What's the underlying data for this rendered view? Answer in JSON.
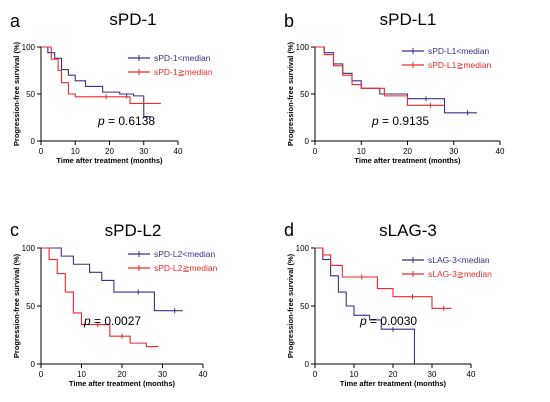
{
  "colors": {
    "series1": "#3a2f8c",
    "series2": "#ee2a2a",
    "axis": "#000000"
  },
  "chart_data": [
    {
      "type": "line",
      "panel_letter": "a",
      "title": "sPD-1",
      "xlabel": "Time after treatment (months)",
      "ylabel": "Progression-free survival (%)",
      "xlim": [
        0,
        40
      ],
      "ylim": [
        0,
        100
      ],
      "xticks": [
        0,
        10,
        20,
        30,
        40
      ],
      "yticks": [
        0,
        50,
        100
      ],
      "grid": false,
      "legend": "top-right",
      "annotation": {
        "prefix": "p",
        "value": " = 0.6138"
      },
      "series": [
        {
          "name": "sPD-1<median",
          "color": "#3a2f8c",
          "x": [
            0,
            2,
            4,
            6,
            8,
            10,
            13,
            18,
            23,
            27,
            30,
            32
          ],
          "y": [
            100,
            94,
            88,
            76,
            70,
            64,
            58,
            52,
            50,
            48,
            26,
            26
          ],
          "censored": [
            [
              25,
              48
            ]
          ]
        },
        {
          "name": "sPD-1≧median",
          "color": "#ee2a2a",
          "x": [
            0,
            3,
            5,
            6,
            8,
            10,
            26,
            35
          ],
          "y": [
            100,
            87,
            75,
            62,
            50,
            47,
            40,
            40
          ],
          "censored": [
            [
              19,
              47
            ],
            [
              30,
              40
            ]
          ]
        }
      ]
    },
    {
      "type": "line",
      "panel_letter": "b",
      "title": "sPD-L1",
      "xlabel": "Time after treatment (months)",
      "ylabel": "Progression-free survival (%)",
      "xlim": [
        0,
        40
      ],
      "ylim": [
        0,
        100
      ],
      "xticks": [
        0,
        10,
        20,
        30,
        40
      ],
      "yticks": [
        0,
        50,
        100
      ],
      "grid": false,
      "legend": "top-right",
      "annotation": {
        "prefix": "p",
        "value": " = 0.9135"
      },
      "series": [
        {
          "name": "sPD-L1<median",
          "color": "#3a2f8c",
          "x": [
            0,
            2,
            4,
            6,
            8,
            10,
            14,
            20,
            28,
            35
          ],
          "y": [
            100,
            94,
            82,
            72,
            64,
            56,
            50,
            45,
            30,
            30
          ],
          "censored": [
            [
              24,
              45
            ],
            [
              33,
              30
            ]
          ]
        },
        {
          "name": "sPD-L1≧median",
          "color": "#ee2a2a",
          "x": [
            0,
            2,
            4,
            6,
            8,
            10,
            15,
            20,
            28
          ],
          "y": [
            100,
            92,
            80,
            70,
            60,
            56,
            48,
            38,
            38
          ],
          "censored": [
            [
              25,
              38
            ]
          ]
        }
      ]
    },
    {
      "type": "line",
      "panel_letter": "c",
      "title": "sPD-L2",
      "xlabel": "Time after treatment (months)",
      "ylabel": "Progression-free survival (%)",
      "xlim": [
        0,
        40
      ],
      "ylim": [
        0,
        100
      ],
      "xticks": [
        0,
        10,
        20,
        30,
        40
      ],
      "yticks": [
        0,
        50,
        100
      ],
      "grid": false,
      "legend": "top-right",
      "annotation": {
        "prefix": "p",
        "value": " = 0.0027"
      },
      "series": [
        {
          "name": "sPD-L2<median",
          "color": "#3a2f8c",
          "x": [
            0,
            5,
            8,
            12,
            15,
            18,
            28,
            35
          ],
          "y": [
            100,
            93,
            86,
            79,
            72,
            62,
            46,
            46
          ],
          "censored": [
            [
              24,
              62
            ],
            [
              33,
              46
            ]
          ]
        },
        {
          "name": "sPD-L2≧median",
          "color": "#ee2a2a",
          "x": [
            0,
            2,
            4,
            6,
            8,
            10,
            17,
            22,
            26,
            29
          ],
          "y": [
            100,
            90,
            78,
            62,
            44,
            34,
            24,
            18,
            15,
            15
          ],
          "censored": [
            [
              14,
              34
            ],
            [
              20,
              24
            ]
          ]
        }
      ]
    },
    {
      "type": "line",
      "panel_letter": "d",
      "title": "sLAG-3",
      "xlabel": "Time after treatment (months)",
      "ylabel": "Progression-free survival (%)",
      "xlim": [
        0,
        40
      ],
      "ylim": [
        0,
        100
      ],
      "xticks": [
        0,
        10,
        20,
        30,
        40
      ],
      "yticks": [
        0,
        50,
        100
      ],
      "grid": false,
      "legend": "top-right",
      "annotation": {
        "prefix": "p",
        "value": " = 0.0030"
      },
      "series": [
        {
          "name": "sLAG-3<median",
          "color": "#3a2f8c",
          "x": [
            0,
            2,
            4,
            6,
            8,
            10,
            14,
            17,
            25.5
          ],
          "y": [
            100,
            90,
            76,
            62,
            50,
            42,
            38,
            30,
            0
          ],
          "censored": [
            [
              20,
              30
            ]
          ]
        },
        {
          "name": "sLAG-3≧median",
          "color": "#ee2a2a",
          "x": [
            0,
            2,
            4,
            7,
            16,
            20,
            30,
            35
          ],
          "y": [
            100,
            94,
            85,
            75,
            65,
            58,
            48,
            48
          ],
          "censored": [
            [
              12,
              75
            ],
            [
              25,
              58
            ],
            [
              33,
              48
            ]
          ]
        }
      ]
    }
  ]
}
